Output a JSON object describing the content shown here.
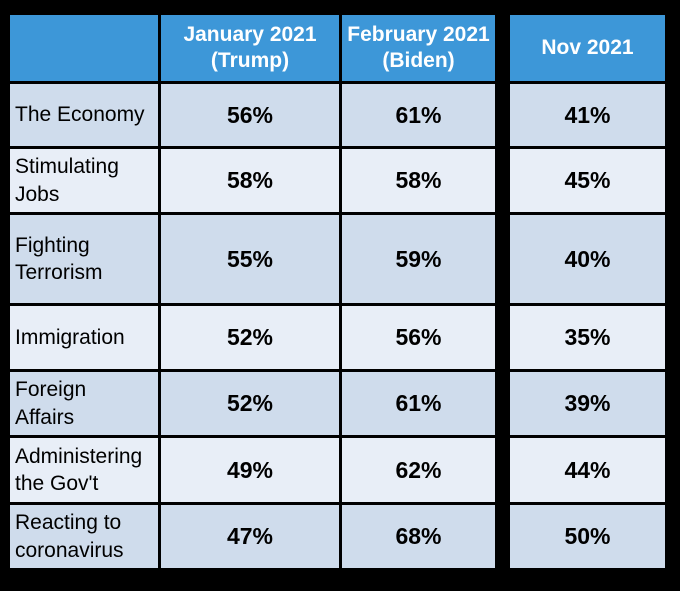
{
  "chart_data": {
    "type": "table",
    "columns": [
      "January 2021 (Trump)",
      "February 2021 (Biden)",
      "Nov 2021"
    ],
    "header": {
      "jan": [
        "January 2021",
        "(Trump)"
      ],
      "feb": [
        "February 2021",
        "(Biden)"
      ],
      "nov": "Nov 2021"
    },
    "rows": [
      {
        "label": [
          "The Economy"
        ],
        "jan": "56%",
        "feb": "61%",
        "nov": "41%"
      },
      {
        "label": [
          "Stimulating",
          "Jobs"
        ],
        "jan": "58%",
        "feb": "58%",
        "nov": "45%"
      },
      {
        "label": [
          "Fighting",
          "Terrorism"
        ],
        "jan": "55%",
        "feb": "59%",
        "nov": "40%"
      },
      {
        "label": [
          "Immigration"
        ],
        "jan": "52%",
        "feb": "56%",
        "nov": "35%"
      },
      {
        "label": [
          "Foreign",
          "Affairs"
        ],
        "jan": "52%",
        "feb": "61%",
        "nov": "39%"
      },
      {
        "label": [
          "Administering",
          "the Gov't"
        ],
        "jan": "49%",
        "feb": "62%",
        "nov": "44%"
      },
      {
        "label": [
          "Reacting to",
          "coronavirus"
        ],
        "jan": "47%",
        "feb": "68%",
        "nov": "50%"
      }
    ],
    "colors": {
      "header": "#3d97d8",
      "row_dark": "#cfdcec",
      "row_light": "#e8eef7"
    }
  }
}
